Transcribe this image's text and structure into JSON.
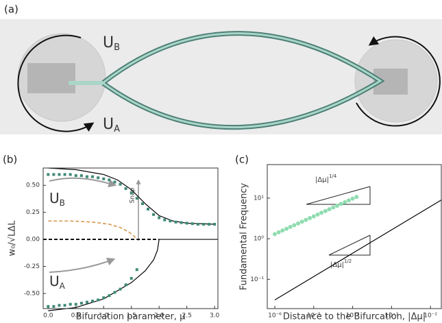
{
  "panels": {
    "a": "(a)",
    "b": "(b)",
    "c": "(c)"
  },
  "photo_labels": {
    "top": {
      "symbol": "U",
      "subscript": "B"
    },
    "bottom": {
      "symbol": "U",
      "subscript": "A"
    }
  },
  "chart_data": [
    {
      "type": "line",
      "xlabel": "Bifurcation parameter,  μ",
      "ylabel": "w₀/√LΔL",
      "annotations": {
        "upper": {
          "symbol": "U",
          "subscript": "B"
        },
        "lower": {
          "symbol": "U",
          "subscript": "A"
        },
        "snap": "Snap"
      },
      "xlim": [
        -0.09,
        3.06
      ],
      "ylim": [
        -0.64,
        0.66
      ],
      "xticks": [
        {
          "value": 0,
          "label": "0.0"
        },
        {
          "value": 0.5,
          "label": "0.5"
        },
        {
          "value": 1,
          "label": "1.0"
        },
        {
          "value": 1.5,
          "label": "1.5"
        },
        {
          "value": 2,
          "label": "2.0"
        },
        {
          "value": 2.5,
          "label": "2.5"
        },
        {
          "value": 3,
          "label": "3.0"
        }
      ],
      "yticks": [
        {
          "value": -0.5,
          "label": "-0.50"
        },
        {
          "value": -0.25,
          "label": "-0.25"
        },
        {
          "value": 0,
          "label": "0.00"
        },
        {
          "value": 0.25,
          "label": "0.25"
        },
        {
          "value": 0.5,
          "label": "0.50"
        }
      ],
      "series": [
        {
          "style": "line",
          "color": "#000000",
          "x": [
            0,
            0.5,
            1,
            1.25,
            1.5,
            1.75,
            2,
            2.25,
            2.5,
            3
          ],
          "values": [
            0.66,
            0.645,
            0.6,
            0.55,
            0.46,
            0.33,
            0.22,
            0.17,
            0.15,
            0.14
          ]
        },
        {
          "style": "line",
          "color": "#000000",
          "x": [
            0,
            0.5,
            1,
            1.5,
            1.75,
            1.9,
            1.97,
            2
          ],
          "values": [
            -0.66,
            -0.63,
            -0.55,
            -0.4,
            -0.29,
            -0.19,
            -0.1,
            0
          ]
        },
        {
          "style": "line",
          "color": "#000000",
          "x": [
            2,
            3.06
          ],
          "values": [
            0,
            0
          ]
        },
        {
          "style": "dashed",
          "color": "#000000",
          "x": [
            -0.09,
            2
          ],
          "values": [
            0,
            0
          ]
        },
        {
          "style": "dashed",
          "color": "#d9a15f",
          "x": [
            0,
            0.4,
            0.8,
            1.1,
            1.3,
            1.45,
            1.55,
            1.6
          ],
          "values": [
            0.17,
            0.17,
            0.16,
            0.14,
            0.11,
            0.07,
            0.03,
            0
          ]
        },
        {
          "style": "squares",
          "color": "#3f8a78",
          "x": [
            0,
            0.1,
            0.2,
            0.3,
            0.4,
            0.5,
            0.6,
            0.7,
            0.8,
            0.9,
            1,
            1.1,
            1.2,
            1.3,
            1.4,
            1.5,
            1.6,
            1.7,
            1.8,
            1.9,
            2,
            2.1,
            2.2,
            2.3,
            2.4,
            2.5,
            2.6,
            2.7,
            2.8,
            2.9,
            3
          ],
          "values": [
            0.6,
            0.6,
            0.6,
            0.6,
            0.6,
            0.59,
            0.59,
            0.58,
            0.58,
            0.57,
            0.56,
            0.55,
            0.53,
            0.51,
            0.47,
            0.43,
            0.38,
            0.33,
            0.28,
            0.23,
            0.2,
            0.18,
            0.17,
            0.16,
            0.155,
            0.15,
            0.145,
            0.14,
            0.14,
            0.14,
            0.14
          ]
        },
        {
          "style": "squares",
          "color": "#3f8a78",
          "x": [
            0,
            0.1,
            0.2,
            0.3,
            0.4,
            0.5,
            0.6,
            0.7,
            0.8,
            0.9,
            1,
            1.1,
            1.2,
            1.3,
            1.4,
            1.5,
            1.6
          ],
          "values": [
            -0.62,
            -0.62,
            -0.61,
            -0.61,
            -0.6,
            -0.6,
            -0.59,
            -0.58,
            -0.57,
            -0.56,
            -0.54,
            -0.52,
            -0.49,
            -0.46,
            -0.42,
            -0.36,
            -0.28
          ]
        }
      ]
    },
    {
      "type": "scatter",
      "xlabel": "Distance to the Bifurcation, |Δμ|",
      "ylabel": "Fundamental Frequency",
      "annotations": {
        "upper": {
          "base": "|Δμ|",
          "exponent": "1/4"
        },
        "lower": {
          "base": "|Δμ|",
          "exponent": "1/2"
        }
      },
      "xscale": "log",
      "yscale": "log",
      "xlim": [
        6.4e-07,
        0.019
      ],
      "ylim": [
        0.019,
        67
      ],
      "xticks": [
        {
          "value": 1e-06,
          "label": "10⁻⁶"
        },
        {
          "value": 1e-05,
          "label": "10⁻⁵"
        },
        {
          "value": 0.0001,
          "label": "10⁻⁴"
        },
        {
          "value": 0.001,
          "label": "10⁻³"
        },
        {
          "value": 0.01,
          "label": "10⁻²"
        }
      ],
      "yticks": [
        {
          "value": 0.1,
          "label": "10⁻¹"
        },
        {
          "value": 1,
          "label": "10⁰"
        },
        {
          "value": 10,
          "label": "10¹"
        }
      ],
      "series": [
        {
          "style": "dots",
          "color": "#8fdcb0",
          "x": [
            1e-06,
            1.26e-06,
            1.58e-06,
            2e-06,
            2.51e-06,
            3.16e-06,
            3.98e-06,
            5.01e-06,
            6.31e-06,
            7.94e-06,
            1e-05,
            1.26e-05,
            1.58e-05,
            2e-05,
            2.51e-05,
            3.16e-05,
            3.98e-05,
            5.01e-05,
            6.31e-05,
            7.94e-05,
            0.0001,
            0.000126
          ],
          "values": [
            1.3,
            1.44,
            1.59,
            1.76,
            1.95,
            2.15,
            2.38,
            2.63,
            2.91,
            3.22,
            3.56,
            3.93,
            4.35,
            4.81,
            5.31,
            5.88,
            6.5,
            7.18,
            7.94,
            8.78,
            9.71,
            10.7
          ]
        },
        {
          "style": "line",
          "color": "#000000",
          "x": [
            1e-06,
            0.019
          ],
          "values": [
            0.031,
            9
          ]
        }
      ]
    }
  ]
}
